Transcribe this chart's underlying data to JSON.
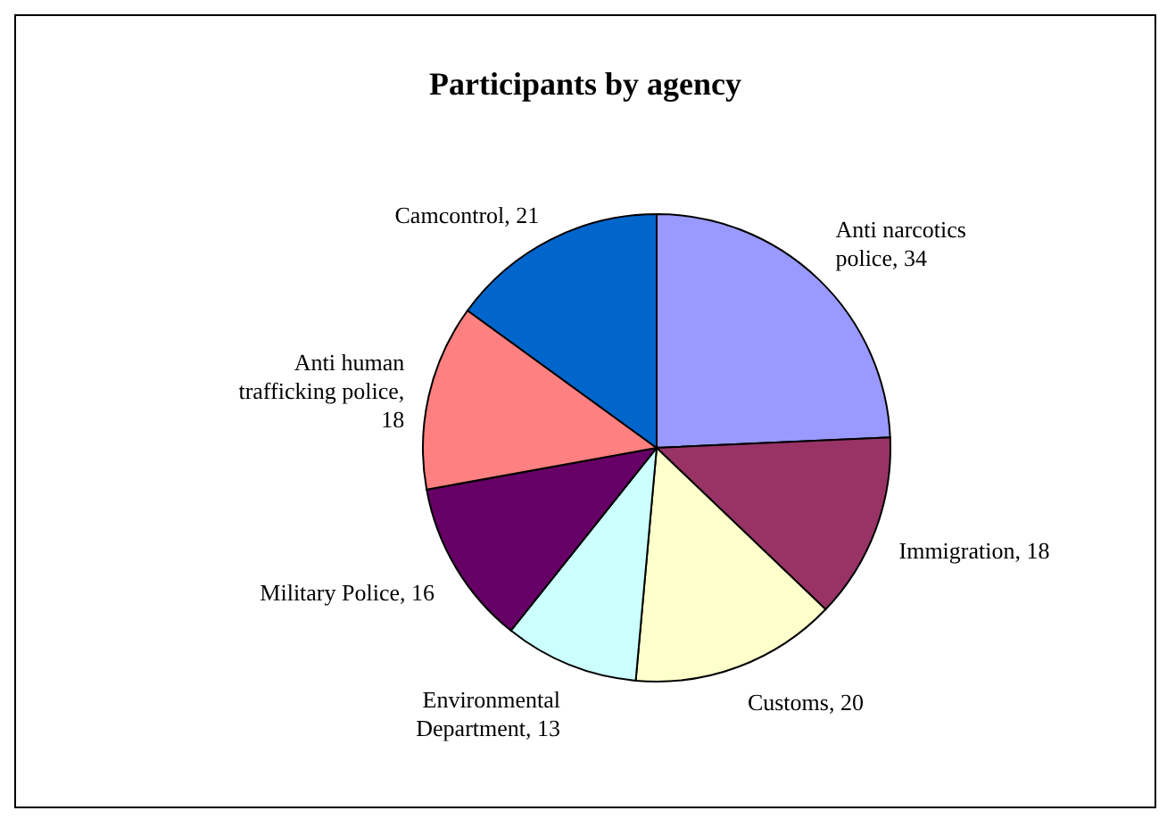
{
  "chart_data": {
    "type": "pie",
    "title": "Participants by agency",
    "categories": [
      "Anti narcotics police, 34",
      "Immigration, 18",
      "Customs, 20",
      "Environmental Department, 13",
      "Military Police, 16",
      "Anti human trafficking police, 18",
      "Camcontrol, 21"
    ],
    "values": [
      34,
      18,
      20,
      13,
      16,
      18,
      21
    ],
    "colors": [
      "#9999ff",
      "#993366",
      "#ffffcc",
      "#ccffff",
      "#660066",
      "#ff8080",
      "#0066cc"
    ],
    "legend": false
  }
}
